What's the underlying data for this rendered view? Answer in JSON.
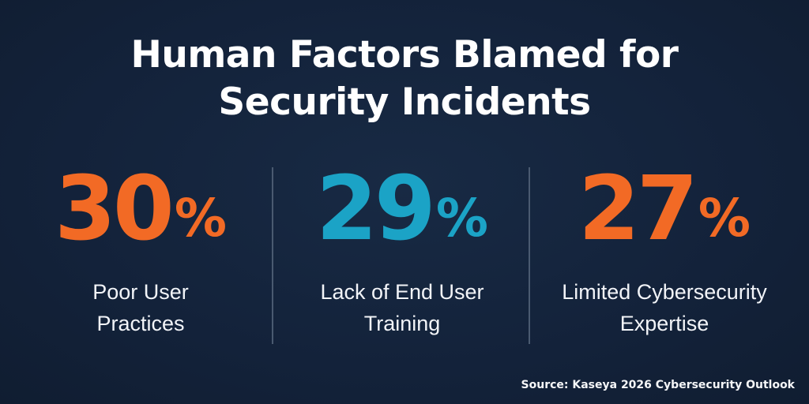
{
  "title": {
    "line1": "Human Factors Blamed for",
    "line2": "Security Incidents"
  },
  "stats": [
    {
      "value": "30",
      "suffix": "%",
      "label_line1": "Poor User",
      "label_line2": "Practices",
      "color": "#f26a25"
    },
    {
      "value": "29",
      "suffix": "%",
      "label_line1": "Lack of End User",
      "label_line2": "Training",
      "color": "#1ba3c6"
    },
    {
      "value": "27",
      "suffix": "%",
      "label_line1": "Limited Cybersecurity",
      "label_line2": "Expertise",
      "color": "#f26a25"
    }
  ],
  "source": "Source: Kaseya 2026 Cybersecurity Outlook",
  "colors": {
    "background": "#13223a",
    "orange": "#f26a25",
    "blue": "#1ba3c6",
    "text": "#ffffff"
  }
}
